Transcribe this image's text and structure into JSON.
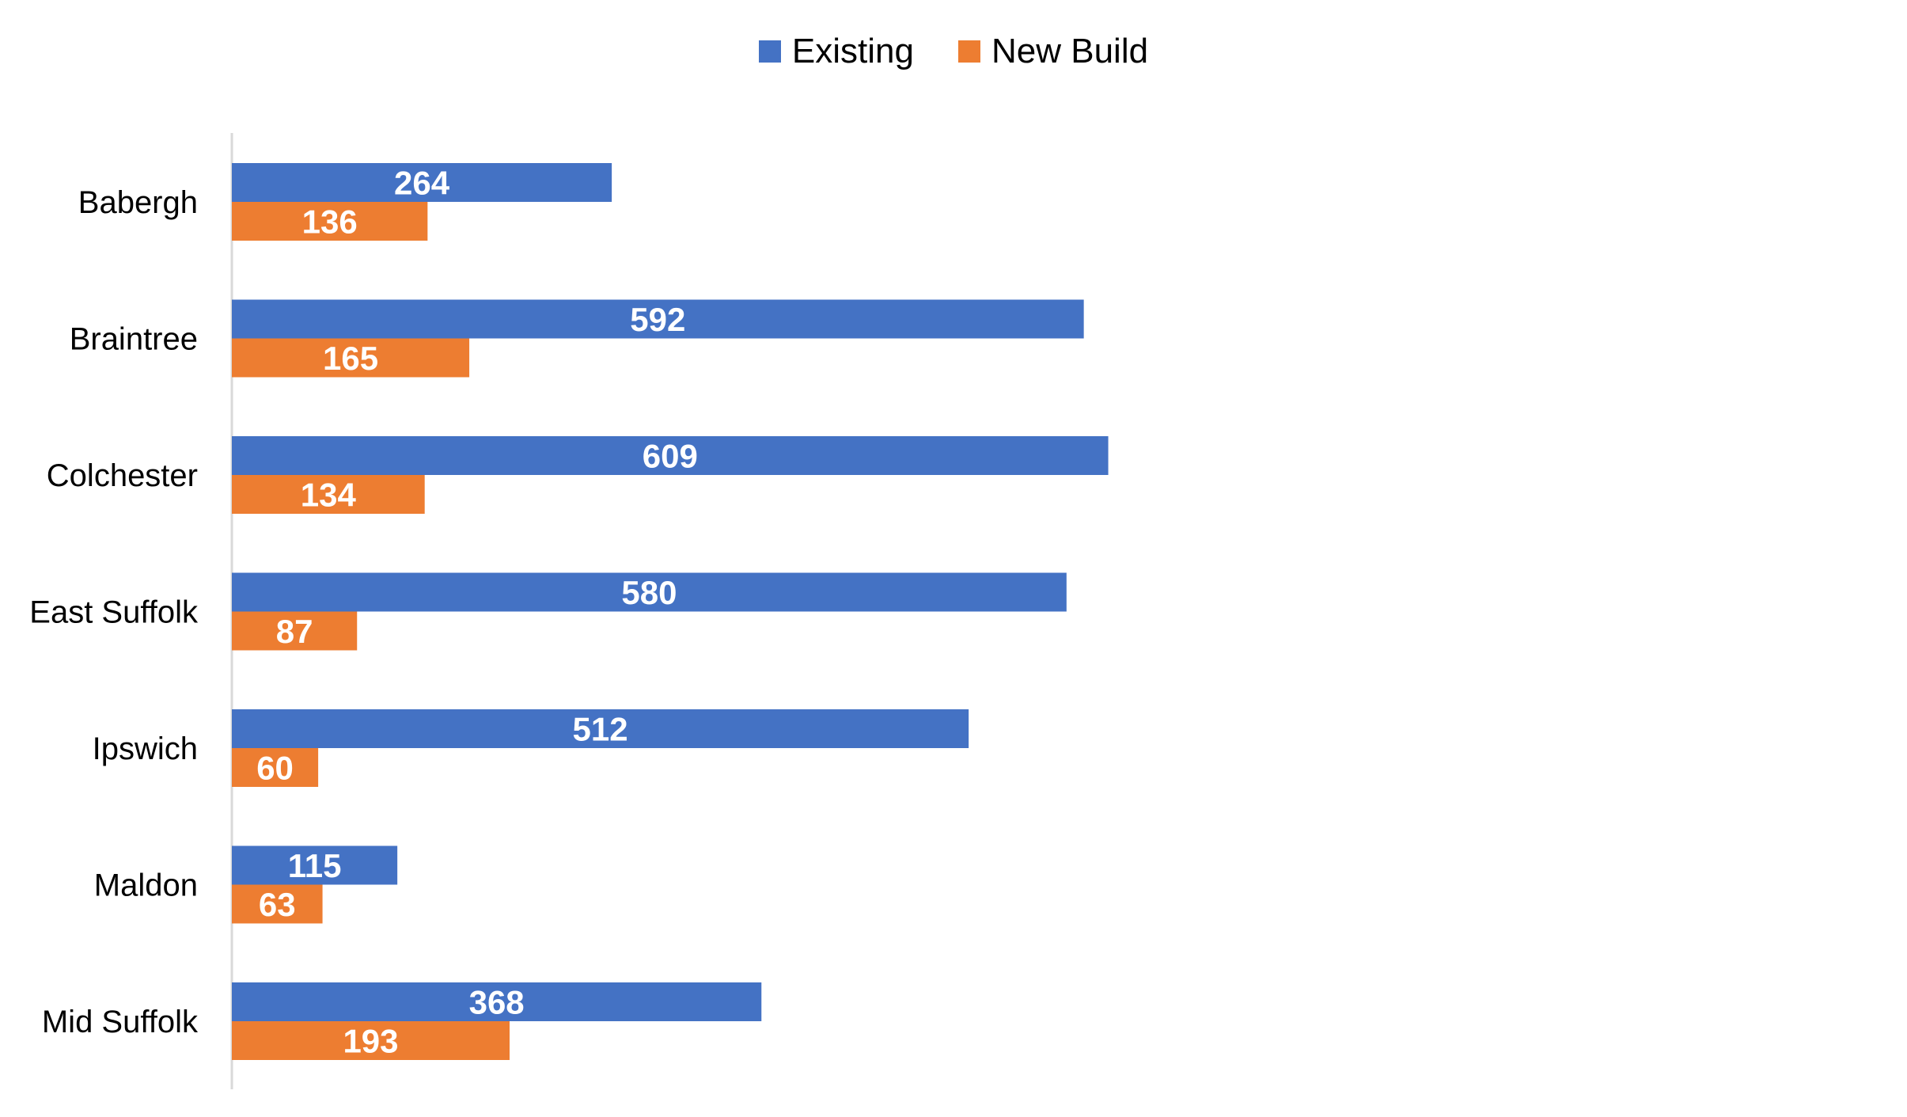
{
  "chart_data": {
    "type": "bar",
    "orientation": "horizontal",
    "categories": [
      "Babergh",
      "Braintree",
      "Colchester",
      "East Suffolk",
      "Ipswich",
      "Maldon",
      "Mid Suffolk"
    ],
    "series": [
      {
        "name": "Existing",
        "color": "#4472C4",
        "values": [
          264,
          592,
          609,
          580,
          512,
          115,
          368
        ]
      },
      {
        "name": "New Build",
        "color": "#ED7D31",
        "values": [
          136,
          165,
          134,
          87,
          60,
          63,
          193
        ]
      }
    ],
    "title": "",
    "xlabel": "",
    "ylabel": "",
    "xlim": [
      0,
      620
    ],
    "grid": false,
    "legend_position": "top",
    "data_labels": true,
    "value_axis_visible": false
  }
}
